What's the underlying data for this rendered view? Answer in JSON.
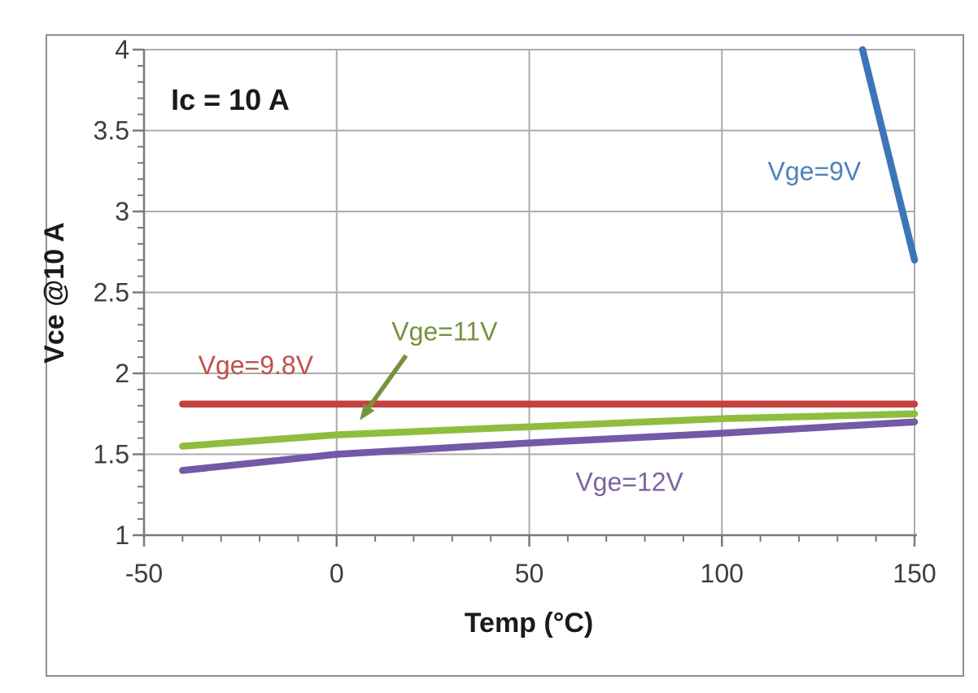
{
  "chart_data": {
    "type": "line",
    "title": "",
    "annotation": "Ic = 10 A",
    "xlabel": "Temp (°C)",
    "ylabel": "Vce @10 A",
    "xlim": [
      -50,
      150
    ],
    "ylim": [
      1,
      4
    ],
    "xticks": [
      -50,
      0,
      50,
      100,
      150
    ],
    "yticks": [
      1,
      1.5,
      2,
      2.5,
      3,
      3.5,
      4
    ],
    "x_minor_step": 10,
    "y_minor_step": 0.1,
    "grid": true,
    "legend_position": "inline-labels",
    "x_unit": "°C",
    "y_unit": "V",
    "series": [
      {
        "name": "Vge=9V",
        "color": "#3d75b9",
        "label_color": "#4f81bd",
        "label_pos": [
          124,
          3.25
        ],
        "points": [
          [
            136.5,
            4.0
          ],
          [
            150,
            2.7
          ]
        ],
        "clipped_at_top": true
      },
      {
        "name": "Vge=9.8V",
        "color": "#c5413d",
        "label_color": "#c0504d",
        "label_pos": [
          -21,
          2.05
        ],
        "points": [
          [
            -40,
            1.81
          ],
          [
            0,
            1.81
          ],
          [
            50,
            1.81
          ],
          [
            100,
            1.81
          ],
          [
            150,
            1.81
          ]
        ],
        "clipped_at_top": false
      },
      {
        "name": "Vge=11V",
        "color": "#8fbe3f",
        "label_color": "#76923c",
        "label_pos": [
          28,
          2.26
        ],
        "points": [
          [
            -40,
            1.55
          ],
          [
            0,
            1.62
          ],
          [
            50,
            1.67
          ],
          [
            100,
            1.72
          ],
          [
            150,
            1.75
          ]
        ],
        "clipped_at_top": false
      },
      {
        "name": "Vge=12V",
        "color": "#7459a6",
        "label_color": "#8064a2",
        "label_pos": [
          76,
          1.33
        ],
        "points": [
          [
            -40,
            1.4
          ],
          [
            0,
            1.5
          ],
          [
            50,
            1.57
          ],
          [
            100,
            1.63
          ],
          [
            150,
            1.7
          ]
        ],
        "clipped_at_top": false
      }
    ],
    "arrow": {
      "color": "#76923c",
      "from": [
        18,
        2.11
      ],
      "to": [
        6,
        1.71
      ],
      "points_at": "Vge=11V"
    }
  },
  "style": {
    "background": "#ffffff",
    "figure_border_color": "#8f9196",
    "grid_color": "#ababab",
    "axis_color": "#7a7a7a",
    "tick_label_color": "#3d3d3d",
    "title_color": "#1a1a1a"
  }
}
